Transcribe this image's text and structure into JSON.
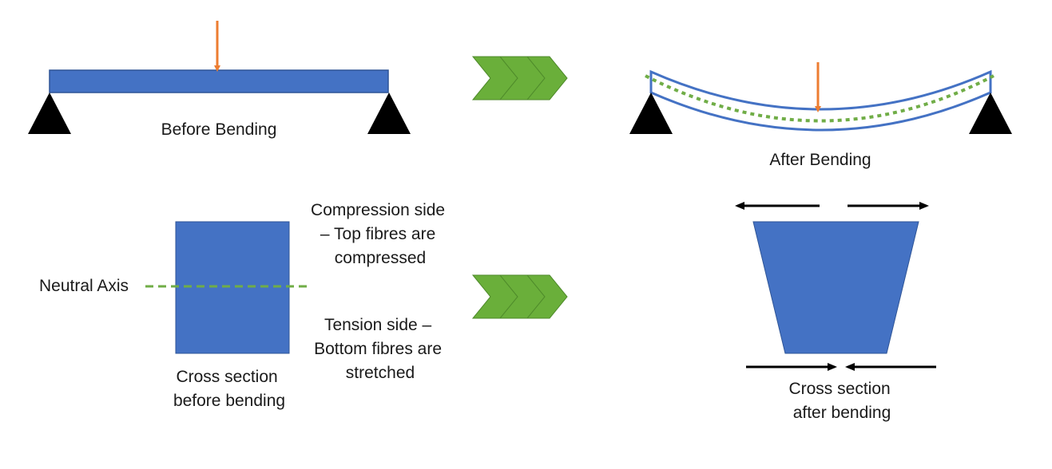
{
  "colors": {
    "beam": "#4472C4",
    "beam_edge": "#2F5597",
    "load_arrow": "#ED7D31",
    "neutral_axis": "#70AD47",
    "chevron": "#6AAF3A",
    "support": "#000000",
    "force_arrow": "#000000",
    "text": "#1a1a1a"
  },
  "labels": {
    "before_bending": "Before Bending",
    "after_bending": "After Bending",
    "neutral_axis": "Neutral Axis",
    "cross_section_before": [
      "Cross section",
      "before bending"
    ],
    "compression": [
      "Compression side",
      "– Top fibres are",
      "compressed"
    ],
    "tension": [
      "Tension side –",
      "Bottom fibres are",
      "stretched"
    ],
    "cross_section_after": [
      "Cross section",
      "after bending"
    ]
  },
  "icons": {
    "support": "triangle-support-icon",
    "load": "down-arrow-icon",
    "transition": "triple-chevron-icon"
  }
}
